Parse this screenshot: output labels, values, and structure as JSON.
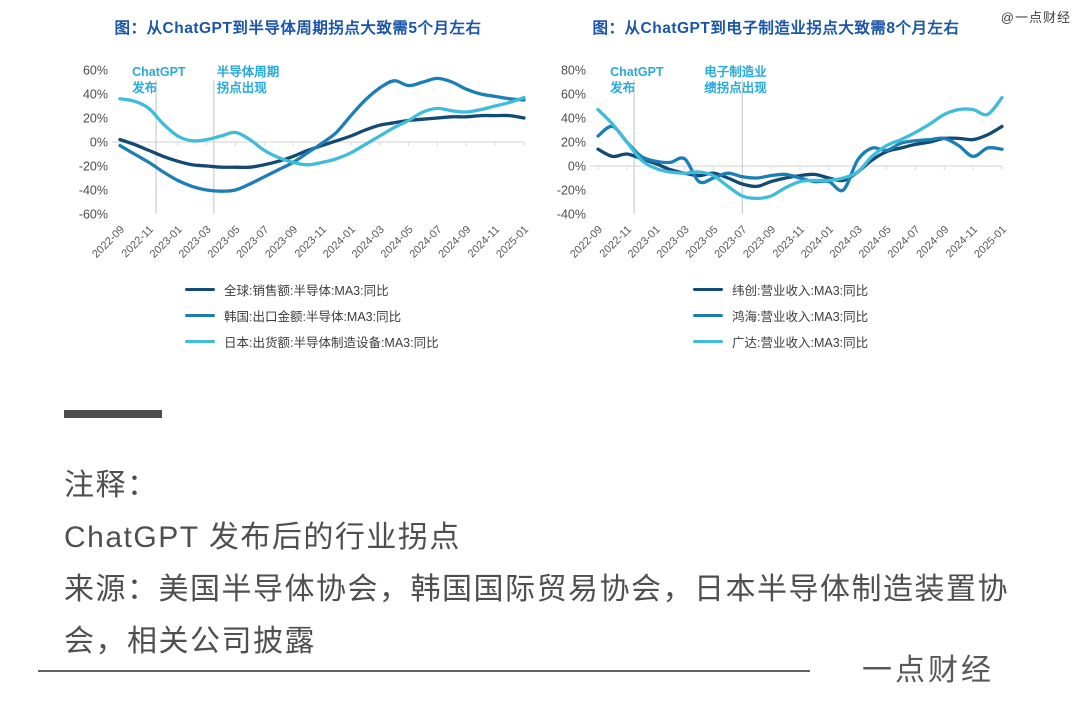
{
  "watermark": "@一点财经",
  "brand": "一点财经",
  "notes": {
    "label": "注释：",
    "line1": "ChatGPT 发布后的行业拐点",
    "source": "来源：美国半导体协会，韩国国际贸易协会，日本半导体制造装置协会，相关公司披露"
  },
  "colors": {
    "title_blue": "#1a55a8",
    "annotation_cyan": "#29a9dc",
    "navy": "#134a73",
    "medium_blue": "#1b7fb5",
    "cyan": "#3fbcd9",
    "axis_gray": "#d9d9d9",
    "vline_gray": "#cdcdcd",
    "tick_text": "#4d4d4d"
  },
  "chart_data": [
    {
      "type": "line",
      "title": "图：从ChatGPT到半导体周期拐点大致需5个月左右",
      "x": [
        "2022-09",
        "2022-10",
        "2022-11",
        "2022-12",
        "2023-01",
        "2023-02",
        "2023-03",
        "2023-04",
        "2023-05",
        "2023-06",
        "2023-07",
        "2023-08",
        "2023-09",
        "2023-10",
        "2023-11",
        "2023-12",
        "2024-01",
        "2024-02",
        "2024-03",
        "2024-04",
        "2024-05",
        "2024-06",
        "2024-07",
        "2024-08",
        "2024-09",
        "2024-10",
        "2024-11",
        "2024-12",
        "2025-01"
      ],
      "xtick_every": 2,
      "ylim": [
        -60,
        60
      ],
      "yticks": [
        60,
        40,
        20,
        0,
        -20,
        -40,
        -60
      ],
      "unit": "%",
      "grid": false,
      "legend_position": "bottom-left",
      "annotations": [
        {
          "label_lines": [
            "ChatGPT",
            "发布"
          ],
          "x_index": 2.5,
          "dx": -24
        },
        {
          "label_lines": [
            "半导体周期",
            "拐点出现"
          ],
          "x_index": 6.5,
          "dx": 3
        }
      ],
      "series": [
        {
          "name": "全球:销售额:半导体:MA3:同比",
          "color": "#134a73",
          "values": [
            2,
            -2,
            -7,
            -12,
            -16,
            -19,
            -20,
            -21,
            -21,
            -21,
            -19,
            -16,
            -12,
            -7,
            -3,
            1,
            5,
            10,
            14,
            16,
            18,
            19,
            20,
            21,
            21,
            22,
            22,
            22,
            20
          ]
        },
        {
          "name": "韩国:出口金额:半导体:MA3:同比",
          "color": "#1b7fb5",
          "values": [
            -3,
            -10,
            -17,
            -25,
            -32,
            -37,
            -40,
            -41,
            -40,
            -35,
            -29,
            -23,
            -17,
            -9,
            -1,
            8,
            22,
            35,
            45,
            51,
            47,
            50,
            53,
            50,
            44,
            40,
            38,
            36,
            35
          ]
        },
        {
          "name": "日本:出货额:半导体制造设备:MA3:同比",
          "color": "#3fbcd9",
          "values": [
            36,
            34,
            28,
            15,
            5,
            1,
            2,
            5,
            8,
            2,
            -7,
            -13,
            -17,
            -19,
            -17,
            -14,
            -9,
            -2,
            5,
            12,
            18,
            25,
            28,
            26,
            25,
            27,
            30,
            33,
            37
          ]
        }
      ]
    },
    {
      "type": "line",
      "title": "图：从ChatGPT到电子制造业拐点大致需8个月左右",
      "x": [
        "2022-09",
        "2022-10",
        "2022-11",
        "2022-12",
        "2023-01",
        "2023-02",
        "2023-03",
        "2023-04",
        "2023-05",
        "2023-06",
        "2023-07",
        "2023-08",
        "2023-09",
        "2023-10",
        "2023-11",
        "2023-12",
        "2024-01",
        "2024-02",
        "2024-03",
        "2024-04",
        "2024-05",
        "2024-06",
        "2024-07",
        "2024-08",
        "2024-09",
        "2024-10",
        "2024-11",
        "2024-12",
        "2025-01"
      ],
      "xtick_every": 2,
      "ylim": [
        -40,
        80
      ],
      "yticks": [
        80,
        60,
        40,
        20,
        0,
        -20,
        -40
      ],
      "unit": "%",
      "grid": false,
      "legend_position": "bottom-left",
      "annotations": [
        {
          "label_lines": [
            "ChatGPT",
            "发布"
          ],
          "x_index": 2.5,
          "dx": -24
        },
        {
          "label_lines": [
            "电子制造业",
            "绩拐点出现"
          ],
          "x_index": 10,
          "dx": -38
        }
      ],
      "series": [
        {
          "name": "纬创:营业收入:MA3:同比",
          "color": "#134a73",
          "values": [
            14,
            8,
            10,
            6,
            2,
            -3,
            -6,
            -8,
            -6,
            -10,
            -15,
            -17,
            -13,
            -10,
            -8,
            -7,
            -10,
            -12,
            -5,
            5,
            12,
            15,
            18,
            20,
            23,
            23,
            22,
            26,
            33
          ]
        },
        {
          "name": "鸿海:营业收入:MA3:同比",
          "color": "#1b7fb5",
          "values": [
            25,
            33,
            20,
            8,
            4,
            3,
            6,
            -13,
            -10,
            -6,
            -9,
            -10,
            -8,
            -7,
            -10,
            -13,
            -13,
            -20,
            5,
            15,
            13,
            19,
            21,
            22,
            23,
            17,
            8,
            15,
            14
          ]
        },
        {
          "name": "广达:营业收入:MA3:同比",
          "color": "#3fbcd9",
          "values": [
            47,
            35,
            20,
            5,
            -2,
            -5,
            -6,
            -5,
            -8,
            -17,
            -25,
            -27,
            -25,
            -18,
            -13,
            -12,
            -12,
            -10,
            -5,
            8,
            17,
            22,
            28,
            35,
            43,
            47,
            47,
            43,
            57
          ]
        }
      ]
    }
  ]
}
